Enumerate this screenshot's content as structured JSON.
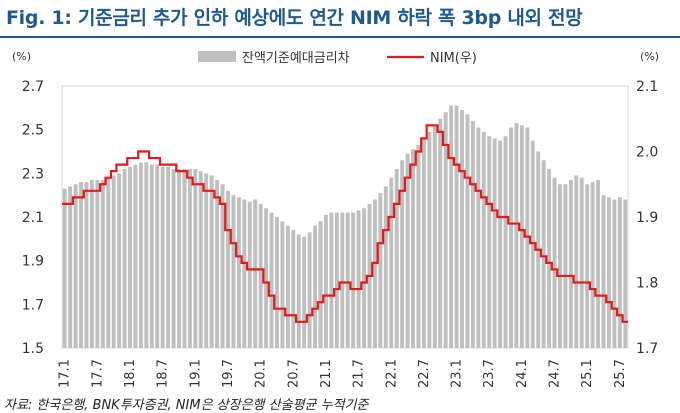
{
  "title": "Fig. 1: 기준금리 추가 인하 예상에도 연간 NIM 하락 폭 3bp 내외 전망",
  "source": "자료: 한국은행, BNK투자증권, NIM은 상장은행 산술평균 누적기준",
  "chart_data": {
    "type": "bar+line",
    "left_axis": {
      "unit": "(%)",
      "min": 1.5,
      "max": 2.7,
      "ticks": [
        1.5,
        1.7,
        1.9,
        2.1,
        2.3,
        2.5,
        2.7
      ]
    },
    "right_axis": {
      "unit": "(%)",
      "min": 1.7,
      "max": 2.1,
      "ticks": [
        1.7,
        1.8,
        1.9,
        2.0,
        2.1
      ]
    },
    "x_tick_labels": [
      "17.1",
      "17.7",
      "18.1",
      "18.7",
      "19.1",
      "19.7",
      "20.1",
      "20.7",
      "21.1",
      "21.7",
      "22.1",
      "22.7",
      "23.1",
      "23.7",
      "24.1",
      "24.7",
      "25.1",
      "25.7"
    ],
    "legend": {
      "position": "top",
      "items": [
        "잔액기준예대금리차",
        "NIM(우)"
      ]
    },
    "colors": {
      "bar": "#bfbfbf",
      "line": "#e01b1b",
      "title": "#1f5a8a"
    },
    "series": [
      {
        "name": "잔액기준예대금리차",
        "type": "bar",
        "axis": "left",
        "values": [
          2.23,
          2.24,
          2.25,
          2.26,
          2.26,
          2.27,
          2.27,
          2.27,
          2.28,
          2.29,
          2.3,
          2.32,
          2.33,
          2.34,
          2.35,
          2.35,
          2.34,
          2.34,
          2.33,
          2.33,
          2.32,
          2.32,
          2.32,
          2.32,
          2.32,
          2.31,
          2.3,
          2.29,
          2.27,
          2.25,
          2.22,
          2.2,
          2.19,
          2.18,
          2.17,
          2.18,
          2.16,
          2.14,
          2.12,
          2.1,
          2.08,
          2.06,
          2.04,
          2.02,
          2.01,
          2.03,
          2.06,
          2.08,
          2.11,
          2.12,
          2.12,
          2.12,
          2.12,
          2.12,
          2.13,
          2.14,
          2.16,
          2.18,
          2.21,
          2.24,
          2.28,
          2.32,
          2.36,
          2.39,
          2.41,
          2.43,
          2.46,
          2.49,
          2.52,
          2.55,
          2.58,
          2.61,
          2.61,
          2.59,
          2.57,
          2.54,
          2.51,
          2.49,
          2.47,
          2.46,
          2.45,
          2.47,
          2.51,
          2.53,
          2.52,
          2.51,
          2.45,
          2.4,
          2.36,
          2.32,
          2.28,
          2.25,
          2.25,
          2.27,
          2.29,
          2.28,
          2.25,
          2.26,
          2.27,
          2.2,
          2.19,
          2.18,
          2.19,
          2.18
        ]
      },
      {
        "name": "NIM(우)",
        "type": "line",
        "axis": "right",
        "values": [
          1.92,
          1.92,
          1.93,
          1.93,
          1.94,
          1.94,
          1.94,
          1.95,
          1.96,
          1.97,
          1.98,
          1.98,
          1.99,
          1.99,
          2.0,
          2.0,
          1.99,
          1.99,
          1.98,
          1.98,
          1.98,
          1.97,
          1.97,
          1.96,
          1.95,
          1.95,
          1.94,
          1.94,
          1.93,
          1.92,
          1.88,
          1.86,
          1.84,
          1.83,
          1.82,
          1.82,
          1.82,
          1.8,
          1.78,
          1.76,
          1.76,
          1.75,
          1.75,
          1.74,
          1.74,
          1.75,
          1.76,
          1.77,
          1.78,
          1.78,
          1.79,
          1.8,
          1.8,
          1.79,
          1.79,
          1.8,
          1.81,
          1.83,
          1.86,
          1.88,
          1.9,
          1.92,
          1.94,
          1.96,
          1.98,
          2.0,
          2.02,
          2.04,
          2.04,
          2.03,
          2.01,
          1.99,
          1.98,
          1.97,
          1.96,
          1.95,
          1.94,
          1.93,
          1.92,
          1.91,
          1.9,
          1.9,
          1.89,
          1.89,
          1.88,
          1.87,
          1.86,
          1.85,
          1.84,
          1.83,
          1.82,
          1.81,
          1.81,
          1.81,
          1.8,
          1.8,
          1.8,
          1.79,
          1.78,
          1.78,
          1.77,
          1.76,
          1.75,
          1.74
        ]
      }
    ]
  }
}
